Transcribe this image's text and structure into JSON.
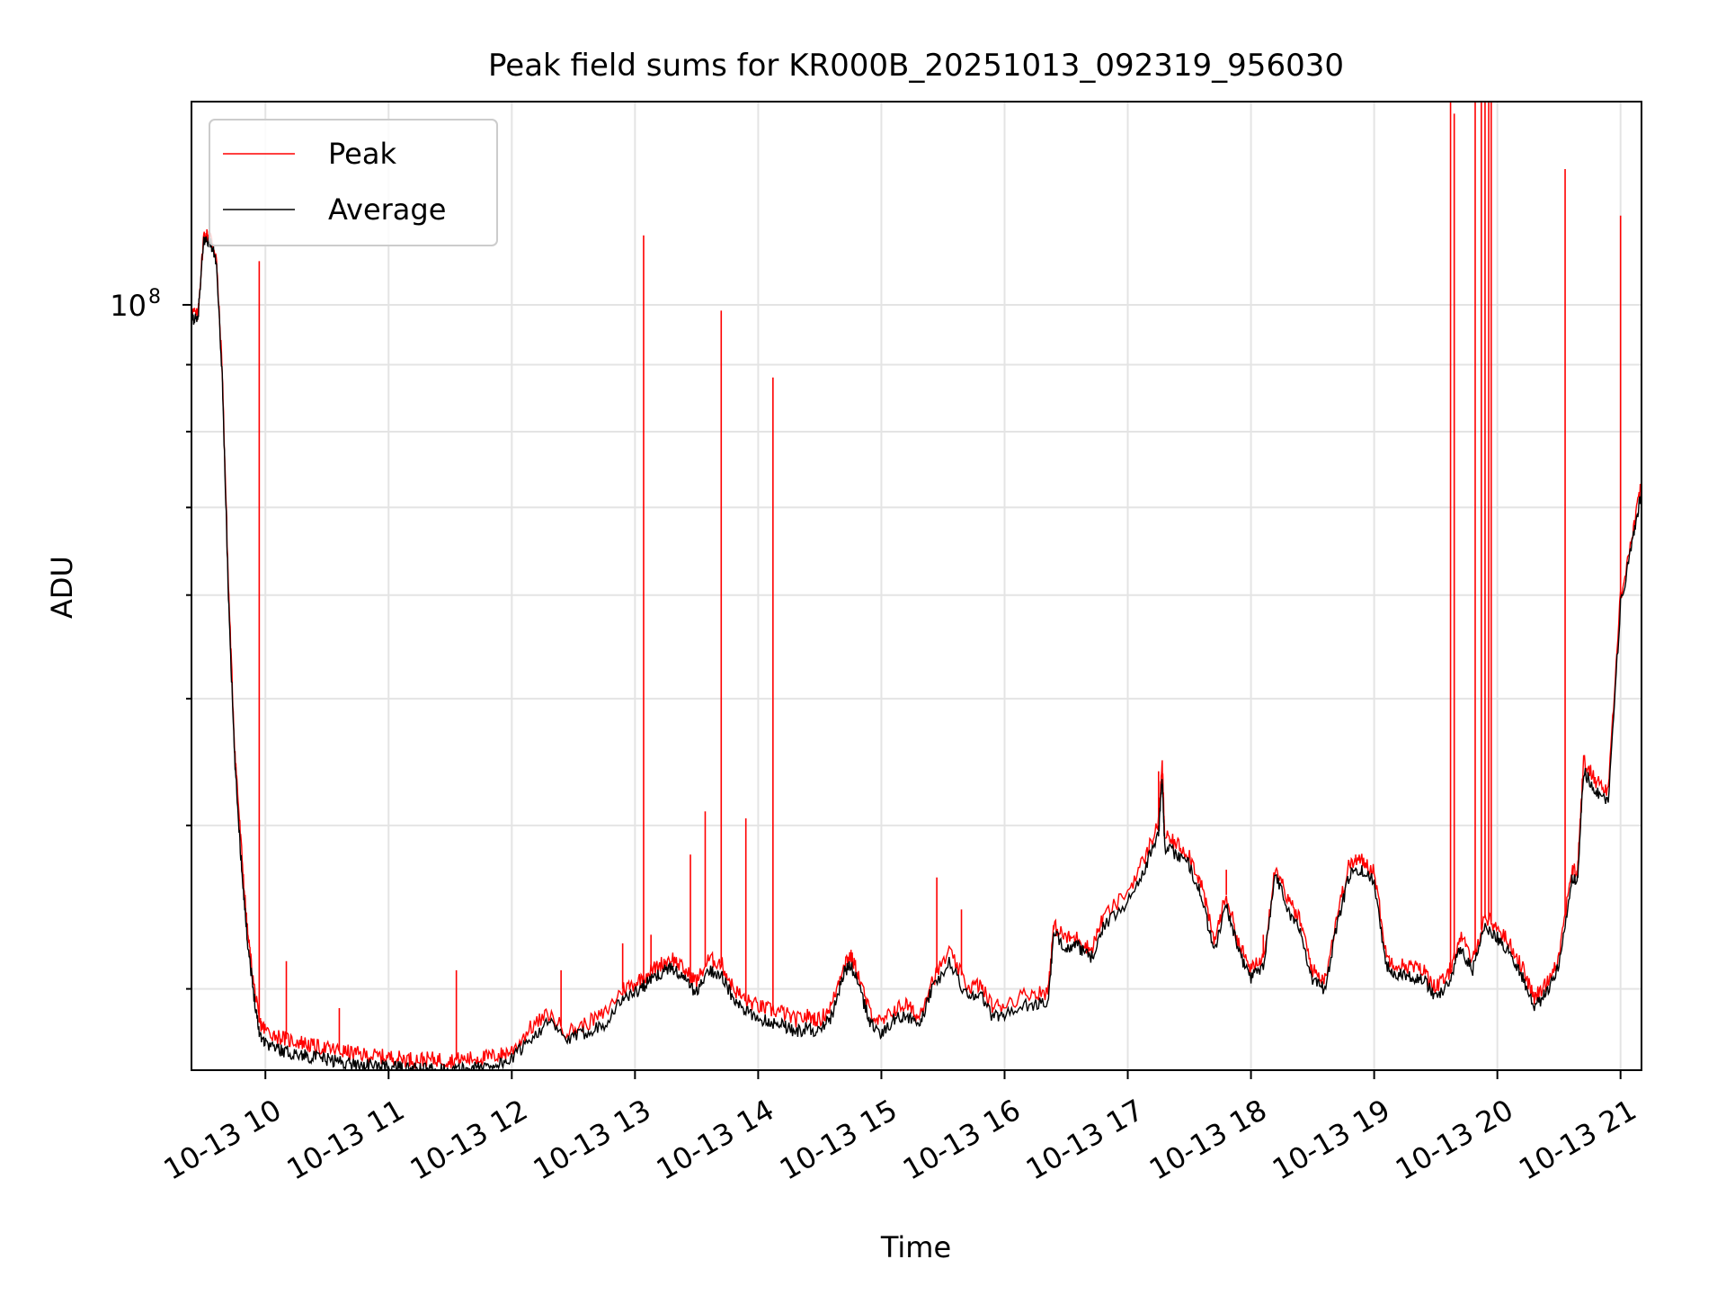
{
  "chart_data": {
    "type": "line",
    "title": "Peak field sums for KR000B_20251013_092319_956030",
    "xlabel": "Time",
    "ylabel": "ADU",
    "yscale": "log",
    "grid": true,
    "ylim": [
      26000000,
      143000000
    ],
    "xlim": [
      9.4,
      21.17
    ],
    "x_tick_values": [
      10,
      11,
      12,
      13,
      14,
      15,
      16,
      17,
      18,
      19,
      20,
      21
    ],
    "x_tick_labels": [
      "10-13 10",
      "10-13 11",
      "10-13 12",
      "10-13 13",
      "10-13 14",
      "10-13 15",
      "10-13 16",
      "10-13 17",
      "10-13 18",
      "10-13 19",
      "10-13 20",
      "10-13 21"
    ],
    "y_major_ticks": [
      {
        "value": 100000000,
        "base": "10",
        "exp": "8"
      }
    ],
    "y_minor_ticks": [
      30000000,
      40000000,
      50000000,
      60000000,
      70000000,
      80000000,
      90000000,
      200000000
    ],
    "legend": {
      "position": "top-left",
      "entries": [
        {
          "label": "Peak",
          "color": "#ff0000"
        },
        {
          "label": "Average",
          "color": "#000000"
        }
      ]
    },
    "x_unit": "hours since 2025-10-13 00:00",
    "series": [
      {
        "name": "Average",
        "color": "#000000",
        "x": [
          9.4,
          9.45,
          9.5,
          9.55,
          9.6,
          9.65,
          9.7,
          9.75,
          9.8,
          9.85,
          9.9,
          9.95,
          10.0,
          10.1,
          10.2,
          10.3,
          10.4,
          10.5,
          10.6,
          10.7,
          10.8,
          10.9,
          11.0,
          11.1,
          11.2,
          11.3,
          11.4,
          11.5,
          11.6,
          11.7,
          11.8,
          11.9,
          12.0,
          12.15,
          12.3,
          12.45,
          12.6,
          12.75,
          12.9,
          13.0,
          13.1,
          13.2,
          13.3,
          13.4,
          13.5,
          13.6,
          13.7,
          13.8,
          13.9,
          14.0,
          14.1,
          14.2,
          14.3,
          14.4,
          14.5,
          14.6,
          14.7,
          14.75,
          14.8,
          14.9,
          15.0,
          15.1,
          15.2,
          15.3,
          15.4,
          15.55,
          15.7,
          15.8,
          15.9,
          16.0,
          16.2,
          16.35,
          16.4,
          16.5,
          16.6,
          16.7,
          16.8,
          17.0,
          17.15,
          17.25,
          17.28,
          17.3,
          17.4,
          17.5,
          17.6,
          17.7,
          17.8,
          17.9,
          18.0,
          18.1,
          18.2,
          18.3,
          18.4,
          18.5,
          18.6,
          18.7,
          18.8,
          18.9,
          19.0,
          19.1,
          19.2,
          19.3,
          19.4,
          19.5,
          19.6,
          19.7,
          19.8,
          19.9,
          20.0,
          20.1,
          20.2,
          20.3,
          20.4,
          20.5,
          20.6,
          20.65,
          20.7,
          20.8,
          20.9,
          21.0,
          21.1,
          21.17
        ],
        "values": [
          98000000,
          97000000,
          112000000,
          112000000,
          108000000,
          88000000,
          60000000,
          45000000,
          38000000,
          33000000,
          30000000,
          27800000,
          27300000,
          27000000,
          26800000,
          26700000,
          26600000,
          26500000,
          26400000,
          26300000,
          26250000,
          26200000,
          26150000,
          26100000,
          26050000,
          26050000,
          26050000,
          26000000,
          26050000,
          26100000,
          26200000,
          26300000,
          26500000,
          27500000,
          28300000,
          27400000,
          27800000,
          28200000,
          29500000,
          29800000,
          30300000,
          30800000,
          31200000,
          30500000,
          29800000,
          31000000,
          30800000,
          29400000,
          28800000,
          28500000,
          28300000,
          28200000,
          27800000,
          28000000,
          27800000,
          28600000,
          31000000,
          31200000,
          30500000,
          28400000,
          27700000,
          28400000,
          28700000,
          28000000,
          29800000,
          31400000,
          29600000,
          29800000,
          28600000,
          28700000,
          29200000,
          29200000,
          33000000,
          32300000,
          32300000,
          31600000,
          33400000,
          35000000,
          37300000,
          39500000,
          43500000,
          38500000,
          38000000,
          37300000,
          35300000,
          32000000,
          34800000,
          32000000,
          30600000,
          31300000,
          36800000,
          34500000,
          33200000,
          30500000,
          30000000,
          33600000,
          36700000,
          36900000,
          36300000,
          31200000,
          30800000,
          30700000,
          30500000,
          29600000,
          30200000,
          32300000,
          31000000,
          33500000,
          32800000,
          32000000,
          30700000,
          29000000,
          29800000,
          31300000,
          36300000,
          36300000,
          44000000,
          42500000,
          41800000,
          59000000,
          66000000,
          72000000
        ],
        "spikes": []
      },
      {
        "name": "Peak",
        "color": "#ff0000",
        "x": [
          9.4,
          9.45,
          9.5,
          9.55,
          9.6,
          9.65,
          9.7,
          9.75,
          9.8,
          9.85,
          9.9,
          9.95,
          10.0,
          10.1,
          10.2,
          10.3,
          10.4,
          10.5,
          10.6,
          10.7,
          10.8,
          10.9,
          11.0,
          11.1,
          11.2,
          11.3,
          11.4,
          11.5,
          11.6,
          11.7,
          11.8,
          11.9,
          12.0,
          12.15,
          12.3,
          12.45,
          12.6,
          12.75,
          12.9,
          13.0,
          13.1,
          13.2,
          13.3,
          13.4,
          13.5,
          13.6,
          13.7,
          13.8,
          13.9,
          14.0,
          14.1,
          14.2,
          14.3,
          14.4,
          14.5,
          14.6,
          14.7,
          14.75,
          14.8,
          14.9,
          15.0,
          15.1,
          15.2,
          15.3,
          15.4,
          15.55,
          15.7,
          15.8,
          15.9,
          16.0,
          16.2,
          16.35,
          16.4,
          16.5,
          16.6,
          16.7,
          16.8,
          17.0,
          17.15,
          17.25,
          17.28,
          17.3,
          17.4,
          17.5,
          17.6,
          17.7,
          17.8,
          17.9,
          18.0,
          18.1,
          18.2,
          18.3,
          18.4,
          18.5,
          18.6,
          18.7,
          18.8,
          18.9,
          19.0,
          19.1,
          19.2,
          19.3,
          19.4,
          19.5,
          19.6,
          19.7,
          19.8,
          19.9,
          20.0,
          20.1,
          20.2,
          20.3,
          20.4,
          20.5,
          20.6,
          20.65,
          20.7,
          20.8,
          20.9,
          21.0,
          21.1,
          21.17
        ],
        "values": [
          99000000,
          98000000,
          113000000,
          113000000,
          109000000,
          89000000,
          61000000,
          46000000,
          39000000,
          33500000,
          30500000,
          28300000,
          27900000,
          27600000,
          27400000,
          27300000,
          27100000,
          27000000,
          26900000,
          26800000,
          26700000,
          26650000,
          26600000,
          26550000,
          26500000,
          26500000,
          26500000,
          26450000,
          26500000,
          26550000,
          26600000,
          26700000,
          26900000,
          28000000,
          28700000,
          27800000,
          28200000,
          28700000,
          30000000,
          30300000,
          30800000,
          31300000,
          31700000,
          31000000,
          30400000,
          31600000,
          31400000,
          30000000,
          29400000,
          29100000,
          28900000,
          28800000,
          28400000,
          28600000,
          28400000,
          29200000,
          31500000,
          31800000,
          31000000,
          28900000,
          28200000,
          28900000,
          29200000,
          28500000,
          30300000,
          32000000,
          30100000,
          30200000,
          29100000,
          29200000,
          29800000,
          29800000,
          33500000,
          32800000,
          32800000,
          32100000,
          34000000,
          35600000,
          38000000,
          40300000,
          44500000,
          39200000,
          38700000,
          38000000,
          36000000,
          32600000,
          35400000,
          32500000,
          31000000,
          31700000,
          37400000,
          35100000,
          33800000,
          31000000,
          30500000,
          34200000,
          37400000,
          37600000,
          37000000,
          31700000,
          31300000,
          31200000,
          31000000,
          30100000,
          30700000,
          32900000,
          31500000,
          34100000,
          33400000,
          32500000,
          31200000,
          29500000,
          30300000,
          31800000,
          36900000,
          36900000,
          44800000,
          43300000,
          42600000,
          60000000,
          67000000,
          73000000
        ],
        "spikes": [
          {
            "x": 9.95,
            "value": 108000000
          },
          {
            "x": 10.17,
            "value": 31500000
          },
          {
            "x": 10.6,
            "value": 29000000
          },
          {
            "x": 11.55,
            "value": 31000000
          },
          {
            "x": 12.4,
            "value": 31000000
          },
          {
            "x": 12.9,
            "value": 32500000
          },
          {
            "x": 13.07,
            "value": 113000000
          },
          {
            "x": 13.13,
            "value": 33000000
          },
          {
            "x": 13.45,
            "value": 38000000
          },
          {
            "x": 13.57,
            "value": 41000000
          },
          {
            "x": 13.7,
            "value": 99000000
          },
          {
            "x": 13.9,
            "value": 40500000
          },
          {
            "x": 14.12,
            "value": 88000000
          },
          {
            "x": 15.45,
            "value": 36500000
          },
          {
            "x": 15.65,
            "value": 34500000
          },
          {
            "x": 17.25,
            "value": 44000000
          },
          {
            "x": 17.8,
            "value": 37000000
          },
          {
            "x": 18.1,
            "value": 33000000
          },
          {
            "x": 18.85,
            "value": 38000000
          },
          {
            "x": 19.62,
            "value": 143000000
          },
          {
            "x": 19.65,
            "value": 140000000
          },
          {
            "x": 19.82,
            "value": 143000000
          },
          {
            "x": 19.87,
            "value": 143000000
          },
          {
            "x": 19.9,
            "value": 143000000
          },
          {
            "x": 19.93,
            "value": 143000000
          },
          {
            "x": 19.95,
            "value": 143000000
          },
          {
            "x": 20.55,
            "value": 127000000
          },
          {
            "x": 21.0,
            "value": 117000000
          }
        ]
      }
    ]
  }
}
